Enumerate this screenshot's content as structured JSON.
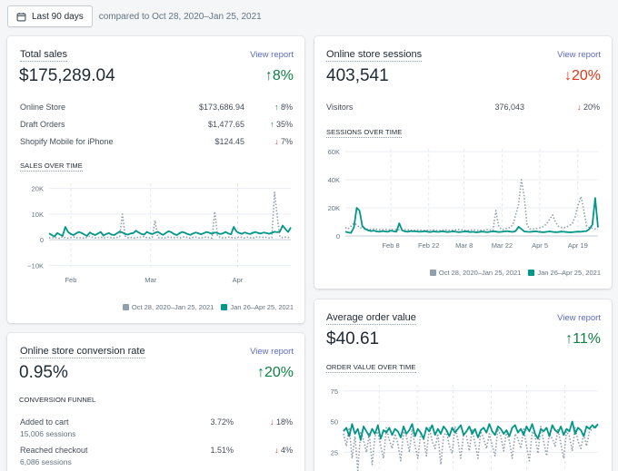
{
  "toolbar": {
    "date_button_label": "Last 90 days",
    "compare_text": "compared to Oct 28, 2020–Jan 25, 2021"
  },
  "colors": {
    "current": "#009688",
    "previous": "#919eab",
    "up": "#108043",
    "down": "#de3618",
    "link": "#5c6ac4"
  },
  "total_sales": {
    "title": "Total sales",
    "view_report": "View report",
    "value": "$175,289.04",
    "delta": "8%",
    "delta_dir": "up",
    "rows": [
      {
        "label": "Online Store",
        "value": "$173,686.94",
        "delta": "8%",
        "dir": "up"
      },
      {
        "label": "Draft Orders",
        "value": "$1,477.65",
        "delta": "35%",
        "dir": "up"
      },
      {
        "label": "Shopify Mobile for iPhone",
        "value": "$124.45",
        "delta": "7%",
        "dir": "down"
      }
    ],
    "chart_label": "SALES OVER TIME",
    "legend_prev": "Oct 28, 2020–Jan 25, 2021",
    "legend_curr": "Jan 26–Apr 25, 2021"
  },
  "sessions": {
    "title": "Online store sessions",
    "view_report": "View report",
    "value": "403,541",
    "delta": "20%",
    "delta_dir": "down",
    "rows": [
      {
        "label": "Visitors",
        "value": "376,043",
        "delta": "20%",
        "dir": "down"
      }
    ],
    "chart_label": "SESSIONS OVER TIME",
    "legend_prev": "Oct 28, 2020–Jan 25, 2021",
    "legend_curr": "Jan 26–Apr 25, 2021"
  },
  "conversion": {
    "title": "Online store conversion rate",
    "view_report": "View report",
    "value": "0.95%",
    "delta": "20%",
    "delta_dir": "up",
    "funnel_label": "CONVERSION FUNNEL",
    "rows": [
      {
        "label": "Added to cart",
        "sub": "15,006 sessions",
        "value": "3.72%",
        "delta": "18%",
        "dir": "down"
      },
      {
        "label": "Reached checkout",
        "sub": "6,086 sessions",
        "value": "1.51%",
        "delta": "4%",
        "dir": "down"
      }
    ]
  },
  "aov": {
    "title": "Average order value",
    "view_report": "View report",
    "value": "$40.61",
    "delta": "11%",
    "delta_dir": "up",
    "chart_label": "ORDER VALUE OVER TIME"
  },
  "chart_data": [
    {
      "type": "line",
      "title": "SALES OVER TIME",
      "y_ticks": [
        "20K",
        "10K",
        "0",
        "−10K"
      ],
      "y_tick_values": [
        20000,
        10000,
        0,
        -10000
      ],
      "ylim": [
        -12000,
        22000
      ],
      "x_ticks": [
        "Feb",
        "Mar",
        "Apr"
      ],
      "grid": true,
      "legend": "bottom-right",
      "series": [
        {
          "name": "Oct 28, 2020–Jan 25, 2021",
          "style": "dotted",
          "values": [
            800,
            600,
            900,
            700,
            500,
            1200,
            800,
            600,
            900,
            1100,
            700,
            900,
            800,
            600,
            1000,
            1300,
            900,
            700,
            800,
            1100,
            600,
            900,
            1000,
            800,
            700,
            900,
            1200,
            10000,
            1500,
            800,
            900,
            700,
            600,
            1100,
            900,
            1300,
            800,
            700,
            1000,
            7500,
            900,
            600,
            800,
            700,
            1100,
            900,
            800,
            1000,
            700,
            900,
            1200,
            800,
            600,
            900,
            1000,
            800,
            700,
            900,
            1100,
            800,
            600,
            11000,
            1500,
            900,
            700,
            800,
            1000,
            900,
            600,
            800,
            1100,
            900,
            700,
            1000,
            800,
            600,
            900,
            1200,
            800,
            1000,
            900,
            700,
            800,
            18500,
            9000,
            1200,
            800,
            1000,
            900,
            800
          ]
        },
        {
          "name": "Jan 26–Apr 25, 2021",
          "style": "solid",
          "values": [
            2500,
            1800,
            1200,
            2600,
            2000,
            1500,
            5000,
            3000,
            2200,
            1800,
            2500,
            3000,
            2600,
            2000,
            1500,
            2800,
            2200,
            1800,
            2400,
            3000,
            1600,
            2200,
            2600,
            2000,
            1800,
            2500,
            3200,
            2800,
            2200,
            2000,
            2400,
            2600,
            3500,
            2800,
            2200,
            2000,
            3000,
            2500,
            2200,
            2700,
            3100,
            2400,
            1900,
            2600,
            3300,
            2900,
            2200,
            1800,
            2500,
            3000,
            2700,
            2200,
            1900,
            2400,
            2800,
            2500,
            2100,
            2600,
            3000,
            2700,
            2300,
            2800,
            2600,
            2200,
            2500,
            3000,
            2400,
            2100,
            5000,
            3200,
            2600,
            2300,
            2800,
            2500,
            2200,
            2700,
            3000,
            2600,
            2400,
            2800,
            2600,
            2300,
            2700,
            3100,
            2900,
            3200,
            5500,
            4200,
            3000,
            4800
          ]
        }
      ]
    },
    {
      "type": "line",
      "title": "SESSIONS OVER TIME",
      "y_ticks": [
        "60K",
        "40K",
        "20K",
        "0"
      ],
      "y_tick_values": [
        60000,
        40000,
        20000,
        0
      ],
      "ylim": [
        0,
        62000
      ],
      "x_ticks": [
        "Feb 8",
        "Feb 22",
        "Mar 8",
        "Mar 22",
        "Apr 5",
        "Apr 19"
      ],
      "grid": true,
      "legend": "bottom-right",
      "series": [
        {
          "name": "Oct 28, 2020–Jan 25, 2021",
          "style": "dotted",
          "values": [
            6000,
            5000,
            7000,
            9000,
            8000,
            6000,
            5500,
            5000,
            4800,
            4500,
            5000,
            4800,
            4600,
            4500,
            4700,
            4400,
            4300,
            4500,
            4600,
            4400,
            4200,
            4500,
            4300,
            4100,
            4000,
            4200,
            4400,
            4100,
            3900,
            4000,
            4200,
            4300,
            4000,
            3800,
            4000,
            4500,
            4200,
            3900,
            4100,
            4400,
            4600,
            4300,
            4100,
            3900,
            4200,
            4400,
            4100,
            3900,
            4000,
            4200,
            4500,
            4300,
            4000,
            18000,
            7000,
            4500,
            4800,
            5500,
            6000,
            8000,
            15000,
            22000,
            40000,
            28000,
            8000,
            5000,
            4800,
            5200,
            5500,
            6000,
            7000,
            9000,
            12000,
            15000,
            10000,
            7000,
            6000,
            5800,
            6500,
            7500,
            9000,
            14000,
            22000,
            28000,
            18000,
            7000,
            6000,
            5500,
            5000,
            4500
          ]
        },
        {
          "name": "Jan 26–Apr 25, 2021",
          "style": "solid",
          "values": [
            3000,
            2500,
            2200,
            6000,
            20000,
            18000,
            7000,
            5000,
            4000,
            3500,
            3800,
            3200,
            3000,
            3500,
            3200,
            3000,
            3800,
            3300,
            3000,
            9000,
            4000,
            3200,
            3000,
            3500,
            3300,
            3200,
            3000,
            3100,
            3400,
            3000,
            2800,
            3200,
            3000,
            2900,
            3300,
            3100,
            2800,
            3000,
            3200,
            3000,
            2700,
            2900,
            3200,
            3100,
            2800,
            3000,
            2600,
            2800,
            3100,
            2900,
            2700,
            3000,
            3300,
            3100,
            2800,
            3000,
            3200,
            3400,
            3100,
            2900,
            3500,
            6500,
            5000,
            3200,
            3000,
            2900,
            3100,
            3300,
            3000,
            2800,
            2700,
            3000,
            3200,
            2900,
            2700,
            2800,
            3100,
            3000,
            2800,
            2600,
            2700,
            2900,
            3100,
            3000,
            3300,
            3500,
            5000,
            8000,
            27000,
            6000
          ]
        }
      ]
    },
    {
      "type": "line",
      "title": "ORDER VALUE OVER TIME",
      "y_ticks": [
        "75",
        "50",
        "25"
      ],
      "y_tick_values": [
        75,
        50,
        25
      ],
      "ylim": [
        0,
        80
      ],
      "x_ticks": [],
      "grid": true,
      "series": [
        {
          "name": "",
          "style": "dotted",
          "values": [
            40,
            30,
            45,
            20,
            38,
            10,
            42,
            35,
            25,
            40,
            15,
            38,
            42,
            30,
            20,
            45,
            35,
            28,
            40,
            32,
            18,
            42,
            38,
            25,
            44,
            30,
            20,
            40,
            36,
            22,
            45,
            34,
            28,
            40,
            15,
            38,
            42,
            30,
            24,
            46,
            35,
            20,
            40,
            38,
            26,
            44,
            32,
            20,
            42,
            36,
            28,
            40,
            30,
            22,
            44,
            38,
            26,
            42,
            34,
            20,
            40,
            36,
            28,
            44,
            30,
            18,
            42,
            38,
            24,
            46,
            34,
            22,
            40,
            36,
            30,
            44,
            32,
            20,
            42,
            38,
            26,
            45,
            34,
            28,
            40,
            30,
            42,
            44,
            46,
            48
          ]
        },
        {
          "name": "",
          "style": "solid",
          "values": [
            42,
            45,
            38,
            48,
            40,
            44,
            35,
            46,
            42,
            38,
            44,
            40,
            47,
            36,
            43,
            41,
            45,
            39,
            44,
            42,
            37,
            46,
            40,
            43,
            48,
            38,
            44,
            41,
            36,
            45,
            42,
            47,
            39,
            44,
            40,
            46,
            43,
            38,
            45,
            41,
            44,
            47,
            39,
            42,
            46,
            40,
            44,
            37,
            43,
            45,
            41,
            48,
            42,
            39,
            46,
            44,
            40,
            43,
            38,
            45,
            47,
            41,
            44,
            39,
            46,
            42,
            48,
            40,
            36,
            44,
            42,
            45,
            38,
            47,
            43,
            41,
            46,
            39,
            44,
            42,
            50,
            40,
            45,
            43,
            38,
            46,
            44,
            47,
            45,
            48
          ]
        }
      ]
    }
  ]
}
